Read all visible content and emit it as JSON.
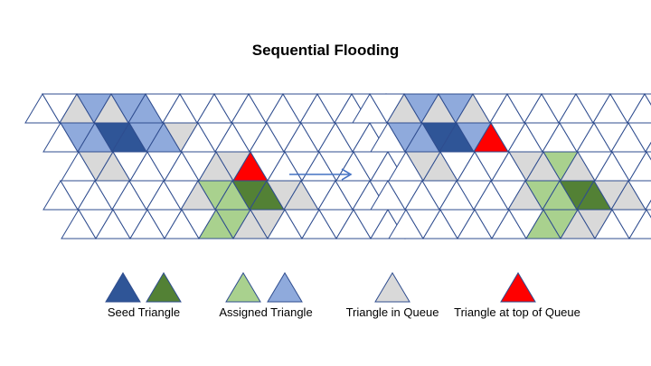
{
  "title": "Sequential Flooding",
  "colors": {
    "edge": "#2f4d8f",
    "empty": "#ffffff",
    "seed_blue": "#2f5597",
    "seed_green": "#538135",
    "assigned_blue": "#8faadc",
    "assigned_green": "#a9d18e",
    "queue": "#d9d9d9",
    "queue_top": "#ff0000",
    "arrow": "#4472c4"
  },
  "grid": {
    "rows": 5,
    "cols": 12,
    "row_starts": [
      0,
      1,
      2,
      3,
      4
    ],
    "left": {
      "cells": [
        [
          1,
          2,
          0,
          0,
          0,
          0,
          0,
          0,
          0,
          0,
          0,
          0
        ],
        [
          0,
          1,
          2,
          1,
          3,
          0,
          0,
          0,
          0,
          0,
          0,
          0
        ],
        [
          0,
          1,
          3,
          4,
          2,
          1,
          0,
          0,
          0,
          0,
          0,
          0
        ],
        [
          0,
          0,
          1,
          0,
          0,
          0,
          1,
          0,
          7,
          0,
          0,
          0
        ],
        [
          0,
          0,
          0,
          0,
          0,
          0,
          1,
          5,
          1,
          5,
          1,
          0
        ]
      ],
      "extra_top": [
        2,
        0,
        0,
        0,
        0,
        0,
        0,
        0,
        0,
        0,
        0,
        0
      ]
    },
    "right": {
      "cells": [
        [
          0,
          1,
          2,
          1,
          3,
          0,
          0,
          0,
          0,
          0,
          0,
          0
        ],
        [
          0,
          1,
          3,
          4,
          2,
          0,
          0,
          0,
          0,
          0,
          0,
          0
        ],
        [
          0,
          0,
          1,
          1,
          3,
          1,
          7,
          0,
          0,
          0,
          0,
          0
        ],
        [
          0,
          0,
          0,
          0,
          0,
          0,
          1,
          1,
          5,
          1,
          1,
          0
        ],
        [
          0,
          0,
          0,
          0,
          0,
          0,
          1,
          5,
          6,
          5,
          1,
          0
        ]
      ]
    }
  },
  "legend": {
    "seed_label": "Seed Triangle",
    "assigned_label": "Assigned Triangle",
    "queue_label": "Triangle in Queue",
    "top_label": "Triangle at top of Queue"
  }
}
